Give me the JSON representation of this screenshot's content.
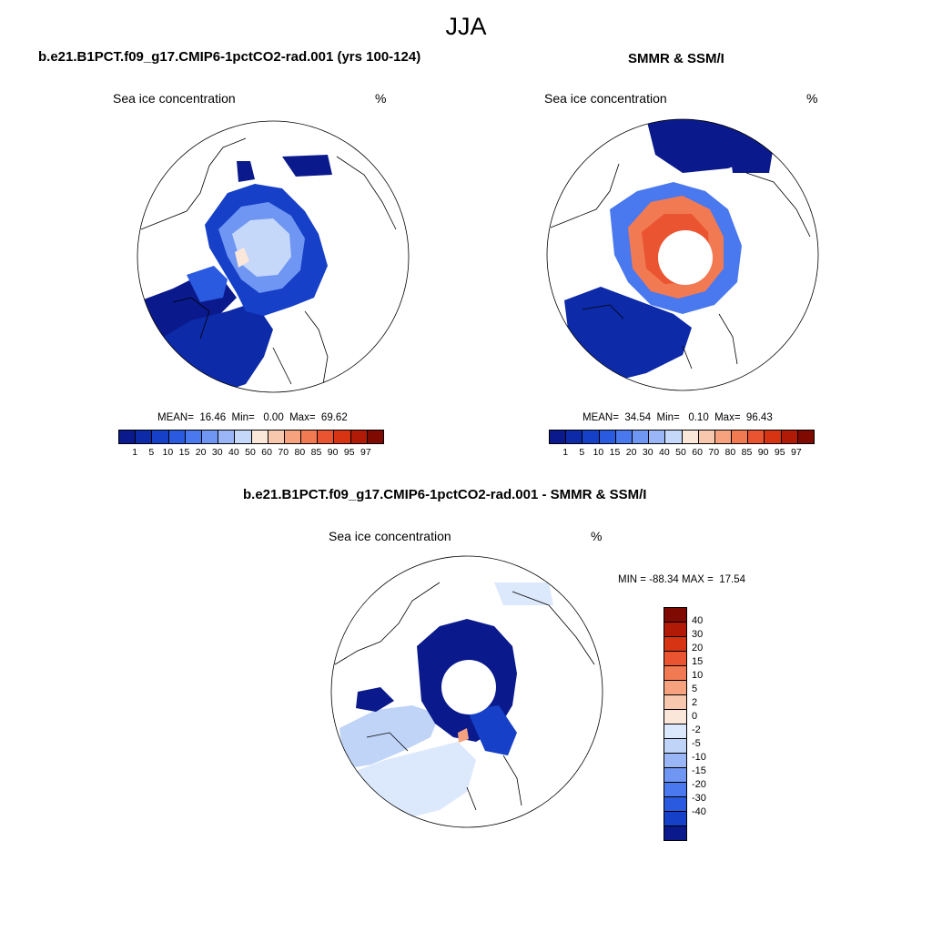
{
  "figure_title": "JJA",
  "panels": {
    "model": {
      "title": "b.e21.B1PCT.f09_g17.CMIP6-1pctCO2-rad.001 (yrs 100-124)",
      "left_label": "Sea ice concentration",
      "right_label": "%",
      "stats": "MEAN=  16.46  Min=   0.00  Max=  69.62"
    },
    "obs": {
      "title": "SMMR & SSM/I",
      "left_label": "Sea ice concentration",
      "right_label": "%",
      "stats": "MEAN=  34.54  Min=   0.10  Max=  96.43"
    },
    "diff": {
      "title": "b.e21.B1PCT.f09_g17.CMIP6-1pctCO2-rad.001 - SMMR & SSM/I",
      "left_label": "Sea ice concentration",
      "right_label": "%",
      "stats": "MIN = -88.34 MAX =  17.54"
    }
  },
  "colorbars": {
    "abs_ticks": [
      "1",
      "5",
      "10",
      "15",
      "20",
      "30",
      "40",
      "50",
      "60",
      "70",
      "80",
      "85",
      "90",
      "95",
      "97"
    ],
    "abs_colors": [
      "#0a1a8c",
      "#0d2aa8",
      "#1640c8",
      "#2a5ae0",
      "#4a78ee",
      "#6e96f2",
      "#9ab6f6",
      "#c6d8fa",
      "#fbe6da",
      "#f8c8ae",
      "#f6a27e",
      "#f27a52",
      "#ea5430",
      "#d63412",
      "#b21a08",
      "#7e0a02"
    ],
    "diff_ticks": [
      "40",
      "30",
      "20",
      "15",
      "10",
      "5",
      "2",
      "0",
      "-2",
      "-5",
      "-10",
      "-15",
      "-20",
      "-30",
      "-40"
    ],
    "diff_colors": [
      "#7e0a02",
      "#b21a08",
      "#d63412",
      "#ea5430",
      "#f27a52",
      "#f6a27e",
      "#f8c8ae",
      "#fbe6da",
      "#dce8fb",
      "#c0d4f8",
      "#9ab6f6",
      "#6e96f2",
      "#4a78ee",
      "#2a5ae0",
      "#1640c8",
      "#0a1a8c"
    ]
  }
}
